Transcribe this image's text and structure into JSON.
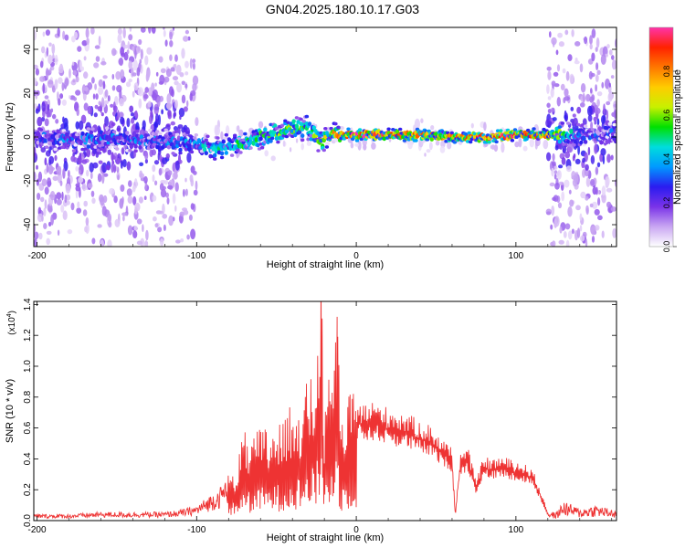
{
  "title": "GN04.2025.180.10.17.G03",
  "chart_data": [
    {
      "id": "spectrogram",
      "type": "heatmap",
      "xlabel": "Height of straight line (km)",
      "ylabel": "Frequency (Hz)",
      "xlim": [
        -202,
        163
      ],
      "ylim": [
        -50,
        50
      ],
      "xticks": [
        -200,
        -100,
        0,
        100
      ],
      "xtick_labels": [
        "-200",
        "-100",
        "0",
        "100"
      ],
      "yticks": [
        -40,
        -20,
        0,
        20,
        40
      ],
      "ytick_labels": [
        "-40",
        "-20",
        "0",
        "20",
        "40"
      ],
      "colorbar": {
        "label": "Normalized spectral amplitude",
        "range": [
          0,
          1
        ],
        "ticks": [
          0.0,
          0.2,
          0.4,
          0.6,
          0.8
        ],
        "tick_labels": [
          "0.0",
          "0.2",
          "0.4",
          "0.6",
          "0.8"
        ],
        "colormap": [
          "#ffffff",
          "#c9a6f2",
          "#7a33e8",
          "#2b1cf0",
          "#0099ff",
          "#00dddd",
          "#00e000",
          "#c8f000",
          "#ffcc00",
          "#ff7700",
          "#ff2200",
          "#ff33aa"
        ]
      },
      "ridge": {
        "x": [
          -200,
          -180,
          -160,
          -140,
          -120,
          -100,
          -90,
          -80,
          -70,
          -60,
          -50,
          -40,
          -30,
          -22,
          -15,
          -10,
          0,
          20,
          40,
          60,
          80,
          100,
          120,
          140,
          160
        ],
        "freq": [
          0,
          -1,
          -1,
          -1,
          -2,
          -3,
          -6,
          -4,
          -3,
          0,
          2,
          4,
          4,
          -3,
          1,
          1,
          1,
          1,
          1,
          0,
          0,
          1,
          1,
          1,
          1
        ],
        "amplitude": [
          0.25,
          0.3,
          0.3,
          0.3,
          0.3,
          0.35,
          0.45,
          0.45,
          0.5,
          0.5,
          0.55,
          0.55,
          0.5,
          0.6,
          0.7,
          0.8,
          0.95,
          0.9,
          0.8,
          0.75,
          0.95,
          0.9,
          0.75,
          0.3,
          0.25
        ]
      },
      "noise_regions": [
        {
          "x": [
            -202,
            -100
          ],
          "level": "high"
        },
        {
          "x": [
            -100,
            120
          ],
          "level": "low"
        },
        {
          "x": [
            120,
            163
          ],
          "level": "high"
        }
      ]
    },
    {
      "id": "snr",
      "type": "line",
      "xlabel": "Height of straight line (km)",
      "ylabel": "SNR (10 * v/v)",
      "y_multiplier": "(x10",
      "y_multiplier_exp": "4",
      "y_multiplier_close": ")",
      "xlim": [
        -202,
        163
      ],
      "ylim": [
        0,
        1.42
      ],
      "xticks": [
        -200,
        -100,
        0,
        100
      ],
      "xtick_labels": [
        "-200",
        "-100",
        "0",
        "100"
      ],
      "yticks": [
        0.0,
        0.2,
        0.4,
        0.6,
        0.8,
        1.0,
        1.2,
        1.4
      ],
      "ytick_labels": [
        "0.0",
        "0.2",
        "0.4",
        "0.6",
        "0.8",
        "1.0",
        "1.2",
        "1.4"
      ],
      "color": "#ee3333",
      "series": [
        {
          "x": [
            -202,
            -180,
            -160,
            -140,
            -120,
            -110,
            -100,
            -95,
            -90,
            -85,
            -80,
            -75,
            -70,
            -65,
            -60,
            -55,
            -50,
            -45,
            -40,
            -35,
            -30,
            -25,
            -22,
            -20,
            -15,
            -12,
            -10,
            -5,
            0,
            5,
            10,
            20,
            30,
            40,
            45,
            50,
            55,
            60,
            62,
            65,
            70,
            75,
            80,
            85,
            90,
            100,
            110,
            115,
            120,
            125,
            130,
            140,
            150,
            163
          ],
          "y": [
            0.03,
            0.03,
            0.04,
            0.04,
            0.04,
            0.05,
            0.07,
            0.1,
            0.13,
            0.16,
            0.22,
            0.35,
            0.5,
            0.45,
            0.55,
            0.52,
            0.6,
            0.55,
            0.75,
            0.7,
            0.8,
            0.9,
            1.43,
            0.6,
            0.95,
            1.32,
            0.55,
            0.7,
            0.75,
            0.72,
            0.74,
            0.7,
            0.67,
            0.62,
            0.6,
            0.55,
            0.5,
            0.45,
            0.04,
            0.42,
            0.45,
            0.25,
            0.4,
            0.38,
            0.4,
            0.37,
            0.33,
            0.2,
            0.05,
            0.04,
            0.1,
            0.06,
            0.08,
            0.05
          ]
        }
      ]
    }
  ]
}
